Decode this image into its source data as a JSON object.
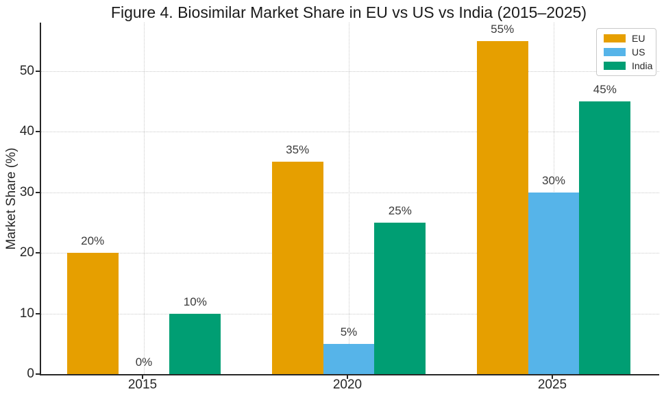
{
  "chart_data": {
    "type": "bar",
    "title": "Figure 4. Biosimilar Market Share in EU vs US vs India (2015–2025)",
    "ylabel": "Market Share (%)",
    "xlabel": "",
    "categories": [
      "2015",
      "2020",
      "2025"
    ],
    "series": [
      {
        "name": "EU",
        "color": "#E69F00",
        "values": [
          20,
          35,
          55
        ],
        "labels": [
          "20%",
          "35%",
          "55%"
        ]
      },
      {
        "name": "US",
        "color": "#56B4E9",
        "values": [
          0,
          5,
          30
        ],
        "labels": [
          "0%",
          "5%",
          "30%"
        ]
      },
      {
        "name": "India",
        "color": "#009E73",
        "values": [
          10,
          25,
          45
        ],
        "labels": [
          "10%",
          "25%",
          "45%"
        ]
      }
    ],
    "yticks": [
      0,
      10,
      20,
      30,
      40,
      50
    ],
    "ylim": [
      0,
      58
    ],
    "grid": "dotted",
    "legend_position": "upper right",
    "colors": {
      "spine": "#262626",
      "grid": "#c9c9c9",
      "tick_label": "#262626",
      "data_label": "#3a3a3a",
      "title": "#1a1a1a",
      "legend_border": "#c9c9c9"
    }
  }
}
